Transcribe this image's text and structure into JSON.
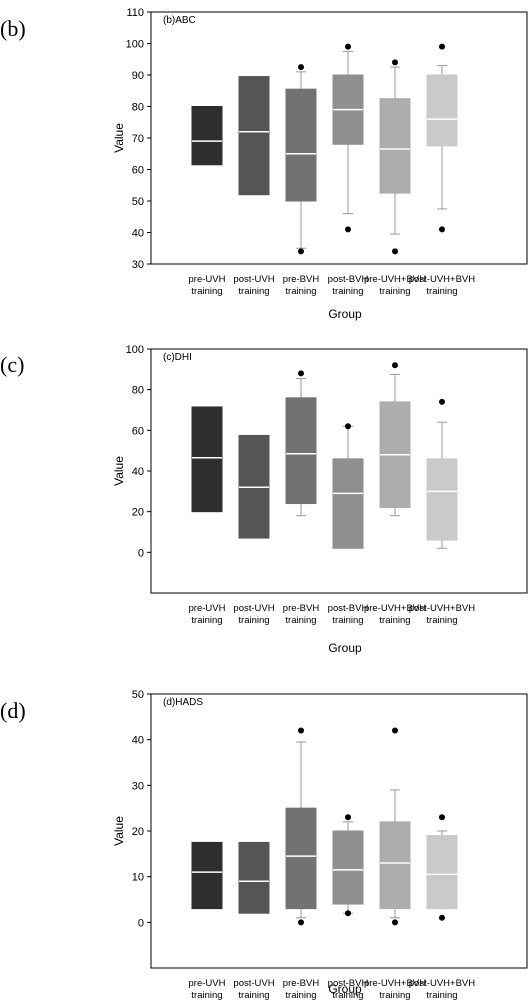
{
  "groups": [
    [
      "pre-UVH",
      "training"
    ],
    [
      "post-UVH",
      "training"
    ],
    [
      "pre-BVH",
      "training"
    ],
    [
      "post-BVH",
      "training"
    ],
    [
      "pre-UVH+BVH",
      "training"
    ],
    [
      "post-UVH+BVH",
      "training"
    ]
  ],
  "colors": [
    "#2e2e2e",
    "#555555",
    "#727272",
    "#8f8f8f",
    "#adadad",
    "#cacaca"
  ],
  "chart_data": [
    {
      "type": "box",
      "panel_label": "(b)",
      "title": "(b)ABC",
      "xlabel": "Group",
      "ylabel": "Value",
      "ylim": [
        30,
        110
      ],
      "yticks": [
        30,
        40,
        50,
        60,
        70,
        80,
        90,
        100,
        110
      ],
      "boxes": [
        {
          "group": "pre-UVH training",
          "q1": 61.5,
          "median": 69,
          "q3": 80
        },
        {
          "group": "post-UVH training",
          "q1": 52,
          "median": 72,
          "q3": 89.5
        },
        {
          "group": "pre-BVH training",
          "q1": 50,
          "median": 65,
          "q3": 85.5,
          "whisker_low": 35,
          "whisker_high": 91,
          "outliers": [
            34,
            92.5
          ]
        },
        {
          "group": "post-BVH training",
          "q1": 68,
          "median": 79,
          "q3": 90,
          "whisker_low": 46,
          "whisker_high": 97.5,
          "outliers": [
            41,
            99
          ]
        },
        {
          "group": "pre-UVH+BVH training",
          "q1": 52.5,
          "median": 66.5,
          "q3": 82.5,
          "whisker_low": 39.5,
          "whisker_high": 92.5,
          "outliers": [
            34,
            94
          ]
        },
        {
          "group": "post-UVH+BVH training",
          "q1": 67.5,
          "median": 76,
          "q3": 90,
          "whisker_low": 47.5,
          "whisker_high": 93,
          "outliers": [
            41,
            99
          ]
        }
      ]
    },
    {
      "type": "box",
      "panel_label": "(c)",
      "title": "(c)DHI",
      "xlabel": "Group",
      "ylabel": "Value",
      "ylim": [
        -20,
        100
      ],
      "yticks": [
        0,
        20,
        40,
        60,
        80,
        100
      ],
      "boxes": [
        {
          "group": "pre-UVH training",
          "q1": 20,
          "median": 46.5,
          "q3": 71.5
        },
        {
          "group": "post-UVH training",
          "q1": 7,
          "median": 32,
          "q3": 57.5
        },
        {
          "group": "pre-BVH training",
          "q1": 24,
          "median": 48.5,
          "q3": 76,
          "whisker_low": 18,
          "whisker_high": 85.5,
          "outliers": [
            88
          ]
        },
        {
          "group": "post-BVH training",
          "q1": 2,
          "median": 29,
          "q3": 46,
          "whisker_high": 62,
          "outliers": [
            62
          ]
        },
        {
          "group": "pre-UVH+BVH training",
          "q1": 22,
          "median": 48,
          "q3": 74,
          "whisker_low": 18,
          "whisker_high": 87.5,
          "outliers": [
            92
          ]
        },
        {
          "group": "post-UVH+BVH training",
          "q1": 6,
          "median": 30,
          "q3": 46,
          "whisker_low": 2,
          "whisker_high": 64,
          "outliers": [
            74
          ]
        }
      ]
    },
    {
      "type": "box",
      "panel_label": "(d)",
      "title": "(d)HADS",
      "xlabel": "Group",
      "ylabel": "Value",
      "ylim": [
        -10,
        50
      ],
      "yticks": [
        0,
        10,
        20,
        30,
        40,
        50
      ],
      "boxes": [
        {
          "group": "pre-UVH training",
          "q1": 3,
          "median": 11,
          "q3": 17.5
        },
        {
          "group": "post-UVH training",
          "q1": 2,
          "median": 9,
          "q3": 17.5
        },
        {
          "group": "pre-BVH training",
          "q1": 3,
          "median": 14.5,
          "q3": 25,
          "whisker_low": 1,
          "whisker_high": 39.5,
          "outliers": [
            0,
            42
          ]
        },
        {
          "group": "post-BVH training",
          "q1": 4,
          "median": 11.5,
          "q3": 20,
          "whisker_low": 2,
          "whisker_high": 22,
          "outliers": [
            2,
            23
          ]
        },
        {
          "group": "pre-UVH+BVH training",
          "q1": 3,
          "median": 13,
          "q3": 22,
          "whisker_low": 1,
          "whisker_high": 29,
          "outliers": [
            0,
            42
          ]
        },
        {
          "group": "post-UVH+BVH training",
          "q1": 3,
          "median": 10.5,
          "q3": 19,
          "whisker_low": 3,
          "whisker_high": 20,
          "outliers": [
            1,
            23
          ]
        }
      ]
    }
  ]
}
